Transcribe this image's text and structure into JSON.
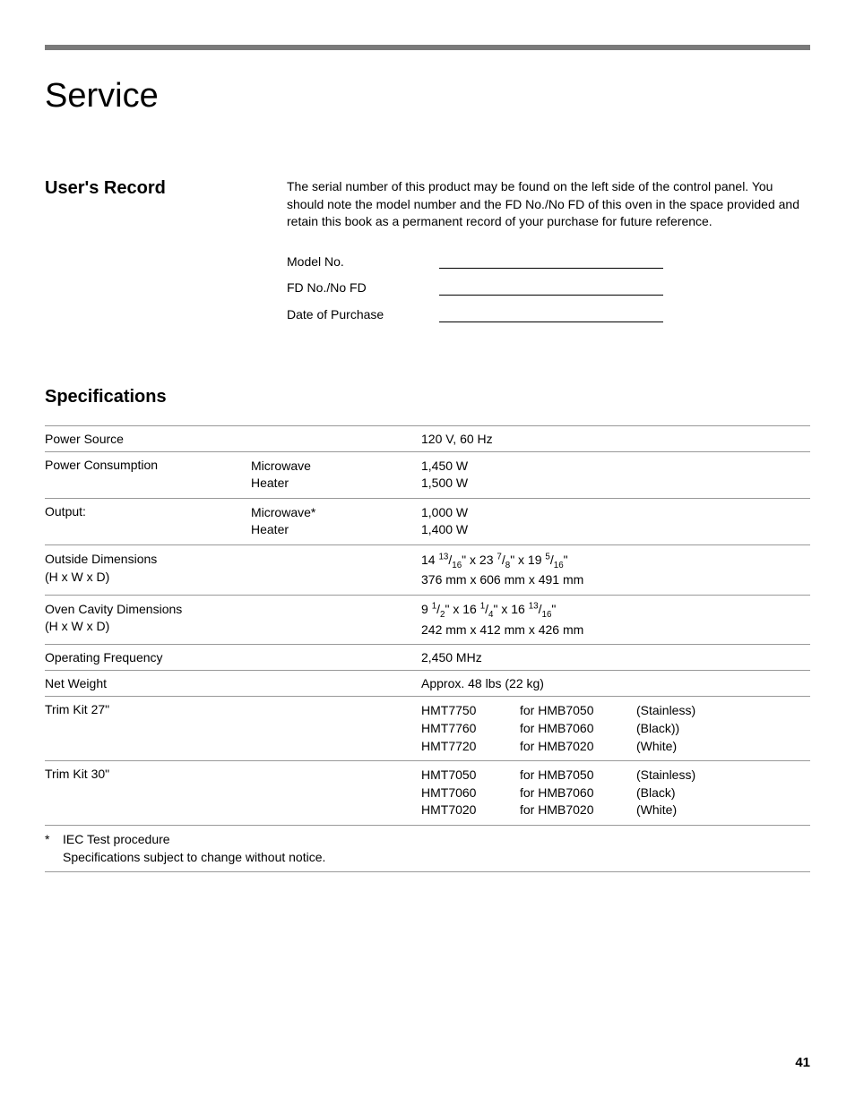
{
  "page": {
    "title": "Service",
    "number": "41"
  },
  "userRecord": {
    "heading": "User's Record",
    "intro": "The serial number of this product may be found on the left side of the control panel. You should note the model number and the FD No./No FD of this oven in the space provided and retain this book as a permanent record of your purchase for future reference.",
    "fields": {
      "modelNo": "Model No.",
      "fdNo": "FD No./No FD",
      "datePurchase": "Date of Purchase"
    }
  },
  "specs": {
    "heading": "Specifications",
    "rows": {
      "powerSource": {
        "label": "Power Source",
        "value": "120 V, 60 Hz"
      },
      "powerConsumption": {
        "label": "Power Consumption",
        "sub1": "Microwave",
        "sub2": "Heater",
        "val1": "1,450 W",
        "val2": "1,500 W"
      },
      "output": {
        "label": "Output:",
        "sub1": "Microwave*",
        "sub2": "Heater",
        "val1": "1,000 W",
        "val2": "1,400 W"
      },
      "outsideDims": {
        "label1": "Outside Dimensions",
        "label2": "(H x W x D)",
        "val1_prefix": "14 ",
        "val1_n1": "13",
        "val1_d1": "16",
        "val1_mid1": "\" x 23 ",
        "val1_n2": "7",
        "val1_d2": "8",
        "val1_mid2": "\" x 19 ",
        "val1_n3": "5",
        "val1_d3": "16",
        "val1_suffix": "\"",
        "val2": "376 mm x 606 mm x 491 mm"
      },
      "cavityDims": {
        "label1": "Oven Cavity Dimensions",
        "label2": "(H x W x D)",
        "val1_prefix": "9 ",
        "val1_n1": "1",
        "val1_d1": "2",
        "val1_mid1": "\" x 16 ",
        "val1_n2": "1",
        "val1_d2": "4",
        "val1_mid2": "\" x 16 ",
        "val1_n3": "13",
        "val1_d3": "16",
        "val1_suffix": "\"",
        "val2": "242 mm x 412 mm x 426 mm"
      },
      "opFreq": {
        "label": "Operating Frequency",
        "value": "2,450 MHz"
      },
      "netWeight": {
        "label": "Net Weight",
        "value": "Approx. 48 lbs (22 kg)"
      },
      "trimKit27": {
        "label": "Trim Kit 27\"",
        "r1c1": "HMT7750",
        "r1c2": "for HMB7050",
        "r1c3": "(Stainless)",
        "r2c1": "HMT7760",
        "r2c2": "for HMB7060",
        "r2c3": "(Black))",
        "r3c1": "HMT7720",
        "r3c2": "for HMB7020",
        "r3c3": "(White)"
      },
      "trimKit30": {
        "label": "Trim Kit 30\"",
        "r1c1": "HMT7050",
        "r1c2": "for HMB7050",
        "r1c3": "(Stainless)",
        "r2c1": "HMT7060",
        "r2c2": "for HMB7060",
        "r2c3": "(Black)",
        "r3c1": "HMT7020",
        "r3c2": "for HMB7020",
        "r3c3": "(White)"
      }
    },
    "footnote": {
      "star": "*",
      "line1": "IEC Test procedure",
      "line2": "Specifications subject to change without notice."
    }
  },
  "colors": {
    "topBar": "#7a7a7a",
    "text": "#000000",
    "border": "#999999",
    "background": "#ffffff"
  }
}
